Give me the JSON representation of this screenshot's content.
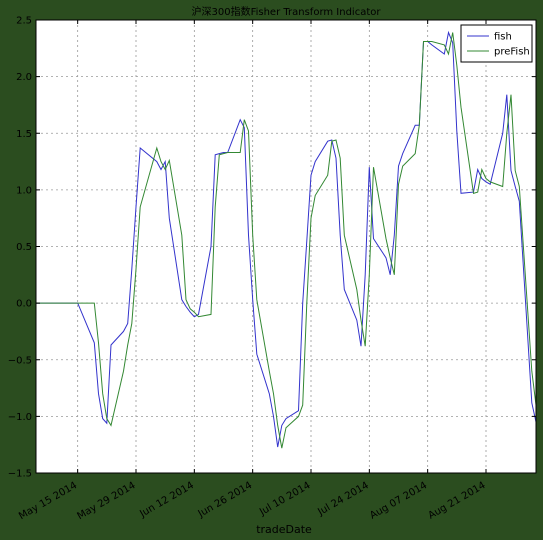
{
  "chart_data": {
    "type": "line",
    "title": "沪深300指数Fisher Transform Indicator",
    "xlabel": "tradeDate",
    "ylabel": "",
    "ylim": [
      -1.5,
      2.5
    ],
    "yticks": [
      -1.5,
      -1.0,
      -0.5,
      0.0,
      0.5,
      1.0,
      1.5,
      2.0,
      2.5
    ],
    "ytick_labels": [
      "−1.5",
      "−1.0",
      "−0.5",
      "0.0",
      "0.5",
      "1.0",
      "1.5",
      "2.0",
      "2.5"
    ],
    "xlim": [
      "2014-05-05",
      "2014-09-02"
    ],
    "xticks": [
      "2014-05-15",
      "2014-05-29",
      "2014-06-12",
      "2014-06-26",
      "2014-07-10",
      "2014-07-24",
      "2014-08-07",
      "2014-08-21"
    ],
    "xtick_labels": [
      "May 15 2014",
      "May 29 2014",
      "Jun 12 2014",
      "Jun 26 2014",
      "Jul 10 2014",
      "Jul 24 2014",
      "Aug 07 2014",
      "Aug 21 2014"
    ],
    "grid": true,
    "legend_position": "top-right",
    "series": [
      {
        "name": "fish",
        "color": "#3333cc",
        "points": [
          [
            "2014-05-05",
            0.0
          ],
          [
            "2014-05-15",
            0.0
          ],
          [
            "2014-05-19",
            -0.35
          ],
          [
            "2014-05-20",
            -0.8
          ],
          [
            "2014-05-21",
            -1.02
          ],
          [
            "2014-05-22",
            -1.06
          ],
          [
            "2014-05-23",
            -0.37
          ],
          [
            "2014-05-26",
            -0.25
          ],
          [
            "2014-05-27",
            -0.18
          ],
          [
            "2014-05-28",
            0.3
          ],
          [
            "2014-05-29",
            0.85
          ],
          [
            "2014-05-30",
            1.37
          ],
          [
            "2014-06-03",
            1.25
          ],
          [
            "2014-06-04",
            1.18
          ],
          [
            "2014-06-05",
            1.25
          ],
          [
            "2014-06-06",
            0.75
          ],
          [
            "2014-06-09",
            0.03
          ],
          [
            "2014-06-10",
            -0.03
          ],
          [
            "2014-06-11",
            -0.08
          ],
          [
            "2014-06-12",
            -0.12
          ],
          [
            "2014-06-13",
            -0.1
          ],
          [
            "2014-06-16",
            0.5
          ],
          [
            "2014-06-17",
            1.31
          ],
          [
            "2014-06-18",
            1.32
          ],
          [
            "2014-06-19",
            1.33
          ],
          [
            "2014-06-20",
            1.33
          ],
          [
            "2014-06-23",
            1.62
          ],
          [
            "2014-06-24",
            1.55
          ],
          [
            "2014-06-25",
            0.6
          ],
          [
            "2014-06-26",
            0.03
          ],
          [
            "2014-06-27",
            -0.45
          ],
          [
            "2014-06-30",
            -0.8
          ],
          [
            "2014-07-01",
            -1.0
          ],
          [
            "2014-07-02",
            -1.27
          ],
          [
            "2014-07-03",
            -1.08
          ],
          [
            "2014-07-04",
            -1.02
          ],
          [
            "2014-07-07",
            -0.95
          ],
          [
            "2014-07-08",
            0.0
          ],
          [
            "2014-07-09",
            0.55
          ],
          [
            "2014-07-10",
            1.13
          ],
          [
            "2014-07-11",
            1.25
          ],
          [
            "2014-07-14",
            1.43
          ],
          [
            "2014-07-15",
            1.44
          ],
          [
            "2014-07-16",
            1.28
          ],
          [
            "2014-07-17",
            0.6
          ],
          [
            "2014-07-18",
            0.12
          ],
          [
            "2014-07-21",
            -0.15
          ],
          [
            "2014-07-22",
            -0.38
          ],
          [
            "2014-07-23",
            0.25
          ],
          [
            "2014-07-24",
            1.2
          ],
          [
            "2014-07-25",
            0.57
          ],
          [
            "2014-07-28",
            0.4
          ],
          [
            "2014-07-29",
            0.25
          ],
          [
            "2014-07-30",
            0.6
          ],
          [
            "2014-07-31",
            1.21
          ],
          [
            "2014-08-01",
            1.32
          ],
          [
            "2014-08-04",
            1.57
          ],
          [
            "2014-08-05",
            1.57
          ],
          [
            "2014-08-06",
            2.31
          ],
          [
            "2014-08-07",
            2.31
          ],
          [
            "2014-08-08",
            2.28
          ],
          [
            "2014-08-11",
            2.2
          ],
          [
            "2014-08-12",
            2.39
          ],
          [
            "2014-08-13",
            2.3
          ],
          [
            "2014-08-14",
            1.52
          ],
          [
            "2014-08-15",
            0.97
          ],
          [
            "2014-08-18",
            0.98
          ],
          [
            "2014-08-19",
            1.18
          ],
          [
            "2014-08-20",
            1.1
          ],
          [
            "2014-08-21",
            1.07
          ],
          [
            "2014-08-22",
            1.05
          ],
          [
            "2014-08-25",
            1.5
          ],
          [
            "2014-08-26",
            1.84
          ],
          [
            "2014-08-27",
            1.17
          ],
          [
            "2014-08-28",
            1.03
          ],
          [
            "2014-08-29",
            0.9
          ],
          [
            "2014-09-01",
            -0.88
          ],
          [
            "2014-09-02",
            -1.05
          ]
        ]
      },
      {
        "name": "preFish",
        "color": "#338833",
        "points": [
          [
            "2014-05-05",
            0.0
          ],
          [
            "2014-05-15",
            0.0
          ],
          [
            "2014-05-19",
            0.0
          ],
          [
            "2014-05-20",
            -0.35
          ],
          [
            "2014-05-21",
            -0.8
          ],
          [
            "2014-05-22",
            -1.02
          ],
          [
            "2014-05-23",
            -1.08
          ],
          [
            "2014-05-26",
            -0.6
          ],
          [
            "2014-05-27",
            -0.37
          ],
          [
            "2014-05-28",
            -0.18
          ],
          [
            "2014-05-29",
            0.3
          ],
          [
            "2014-05-30",
            0.85
          ],
          [
            "2014-06-03",
            1.37
          ],
          [
            "2014-06-04",
            1.25
          ],
          [
            "2014-06-05",
            1.18
          ],
          [
            "2014-06-06",
            1.26
          ],
          [
            "2014-06-09",
            0.6
          ],
          [
            "2014-06-10",
            0.03
          ],
          [
            "2014-06-11",
            -0.05
          ],
          [
            "2014-06-12",
            -0.08
          ],
          [
            "2014-06-13",
            -0.12
          ],
          [
            "2014-06-16",
            -0.1
          ],
          [
            "2014-06-17",
            0.85
          ],
          [
            "2014-06-18",
            1.31
          ],
          [
            "2014-06-19",
            1.32
          ],
          [
            "2014-06-20",
            1.33
          ],
          [
            "2014-06-23",
            1.33
          ],
          [
            "2014-06-24",
            1.62
          ],
          [
            "2014-06-25",
            1.52
          ],
          [
            "2014-06-26",
            0.6
          ],
          [
            "2014-06-27",
            0.03
          ],
          [
            "2014-06-30",
            -0.6
          ],
          [
            "2014-07-01",
            -0.8
          ],
          [
            "2014-07-02",
            -1.08
          ],
          [
            "2014-07-03",
            -1.28
          ],
          [
            "2014-07-04",
            -1.1
          ],
          [
            "2014-07-07",
            -1.0
          ],
          [
            "2014-07-08",
            -0.9
          ],
          [
            "2014-07-09",
            0.0
          ],
          [
            "2014-07-10",
            0.75
          ],
          [
            "2014-07-11",
            0.95
          ],
          [
            "2014-07-14",
            1.13
          ],
          [
            "2014-07-15",
            1.43
          ],
          [
            "2014-07-16",
            1.44
          ],
          [
            "2014-07-17",
            1.28
          ],
          [
            "2014-07-18",
            0.6
          ],
          [
            "2014-07-21",
            0.12
          ],
          [
            "2014-07-22",
            -0.15
          ],
          [
            "2014-07-23",
            -0.38
          ],
          [
            "2014-07-24",
            0.25
          ],
          [
            "2014-07-25",
            1.2
          ],
          [
            "2014-07-28",
            0.57
          ],
          [
            "2014-07-29",
            0.4
          ],
          [
            "2014-07-30",
            0.25
          ],
          [
            "2014-07-31",
            1.05
          ],
          [
            "2014-08-01",
            1.21
          ],
          [
            "2014-08-04",
            1.32
          ],
          [
            "2014-08-05",
            1.57
          ],
          [
            "2014-08-06",
            2.31
          ],
          [
            "2014-08-07",
            2.31
          ],
          [
            "2014-08-08",
            2.31
          ],
          [
            "2014-08-11",
            2.28
          ],
          [
            "2014-08-12",
            2.2
          ],
          [
            "2014-08-13",
            2.39
          ],
          [
            "2014-08-14",
            2.1
          ],
          [
            "2014-08-15",
            1.73
          ],
          [
            "2014-08-18",
            0.97
          ],
          [
            "2014-08-19",
            0.98
          ],
          [
            "2014-08-20",
            1.18
          ],
          [
            "2014-08-21",
            1.1
          ],
          [
            "2014-08-22",
            1.07
          ],
          [
            "2014-08-25",
            1.03
          ],
          [
            "2014-08-26",
            1.5
          ],
          [
            "2014-08-27",
            1.84
          ],
          [
            "2014-08-28",
            1.17
          ],
          [
            "2014-08-29",
            1.03
          ],
          [
            "2014-09-01",
            -0.6
          ],
          [
            "2014-09-02",
            -0.9
          ]
        ]
      }
    ]
  }
}
